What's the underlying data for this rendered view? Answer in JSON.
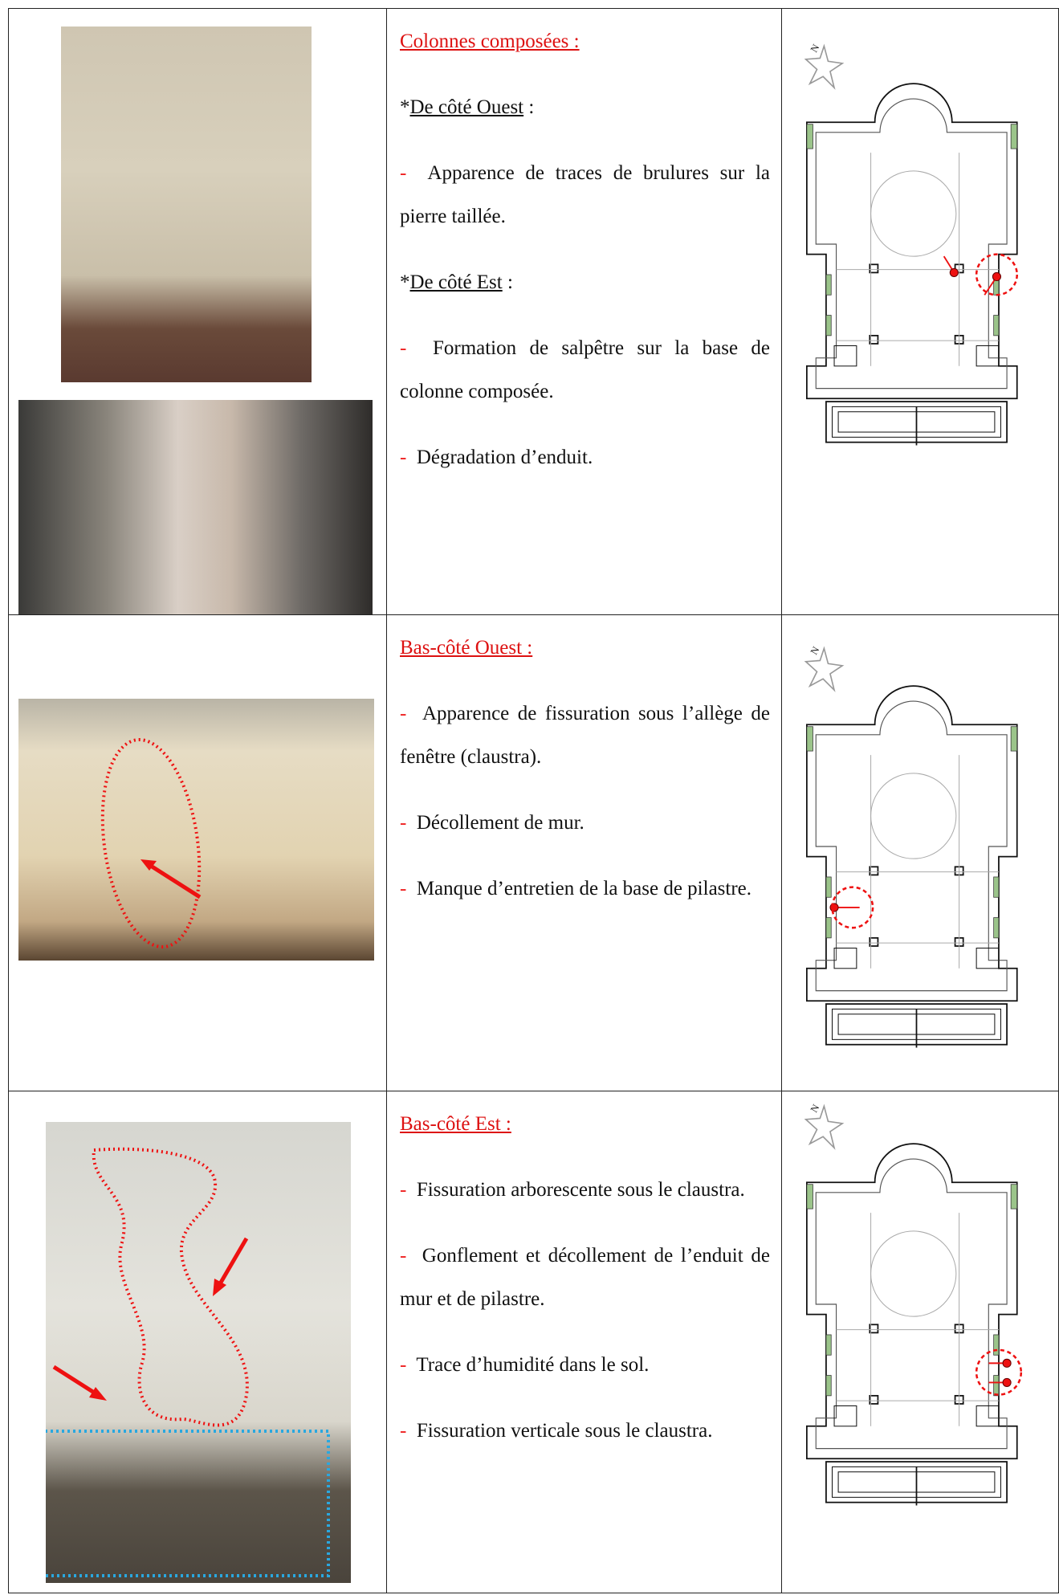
{
  "north_label": "N",
  "rows": [
    {
      "heading": "Colonnes composées :",
      "items": [
        {
          "marker": "*",
          "label": "De côté Ouest",
          "suffix": " :"
        },
        {
          "dash": "-",
          "text": "Apparence de traces de brulures sur la pierre taillée."
        },
        {
          "marker": "*",
          "label": "De côté Est",
          "suffix": " :"
        },
        {
          "dash": "-",
          "text": "Formation de salpêtre sur la base de colonne composée."
        },
        {
          "dash": "-",
          "text": "Dégradation d’enduit."
        }
      ]
    },
    {
      "heading": "Bas-côté Ouest :",
      "items": [
        {
          "dash": "-",
          "text": "Apparence de fissuration sous l’allège de fenêtre (claustra)."
        },
        {
          "dash": "-",
          "text": "Décollement de mur."
        },
        {
          "dash": "-",
          "text": "Manque d’entretien de la base de pilastre."
        }
      ]
    },
    {
      "heading": "Bas-côté Est :",
      "items": [
        {
          "dash": "-",
          "text": "Fissuration arborescente sous le claustra."
        },
        {
          "dash": "-",
          "text": "Gonflement et décollement de l’enduit de mur et de pilastre."
        },
        {
          "dash": "-",
          "text": "Trace d’humidité dans le sol."
        },
        {
          "dash": "-",
          "text": "Fissuration verticale sous le claustra."
        }
      ]
    }
  ]
}
